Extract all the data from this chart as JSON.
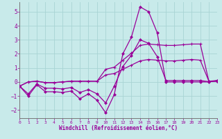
{
  "xlabel": "Windchill (Refroidissement éolien,°C)",
  "bg_color": "#c8eaea",
  "grid_color": "#a8d4d4",
  "line_color": "#990099",
  "xlim": [
    0,
    23
  ],
  "ylim": [
    -2.6,
    5.7
  ],
  "xticks": [
    0,
    1,
    2,
    3,
    4,
    5,
    6,
    7,
    8,
    9,
    10,
    11,
    12,
    13,
    14,
    15,
    16,
    17,
    18,
    19,
    20,
    21,
    22,
    23
  ],
  "yticks": [
    -2,
    -1,
    0,
    1,
    2,
    3,
    4,
    5
  ],
  "x": [
    0,
    1,
    2,
    3,
    4,
    5,
    6,
    7,
    8,
    9,
    10,
    11,
    12,
    13,
    14,
    15,
    16,
    17,
    18,
    19,
    20,
    21,
    22,
    23
  ],
  "line_diamond1": [
    -0.3,
    -1.0,
    -0.2,
    -0.7,
    -0.7,
    -0.75,
    -0.65,
    -1.2,
    -0.85,
    -1.3,
    -2.2,
    -0.9,
    2.0,
    3.2,
    5.35,
    5.0,
    3.5,
    0.0,
    0.0,
    0.0,
    0.0,
    0.0,
    0.0,
    0.1
  ],
  "line_diamond2": [
    -0.3,
    -0.85,
    -0.15,
    -0.45,
    -0.45,
    -0.5,
    -0.4,
    -0.75,
    -0.55,
    -0.85,
    -1.5,
    -0.3,
    1.1,
    1.9,
    3.0,
    2.75,
    1.8,
    0.1,
    0.1,
    0.1,
    0.1,
    0.1,
    0.02,
    0.05
  ],
  "line_plus1": [
    -0.3,
    0.0,
    0.05,
    -0.05,
    -0.05,
    0.0,
    0.05,
    0.05,
    0.05,
    0.05,
    0.9,
    1.05,
    1.55,
    2.05,
    2.6,
    2.7,
    2.65,
    2.6,
    2.6,
    2.65,
    2.7,
    2.7,
    0.05,
    0.1
  ],
  "line_plus2": [
    -0.3,
    0.0,
    0.05,
    -0.05,
    -0.05,
    0.0,
    0.05,
    0.05,
    0.05,
    0.05,
    0.5,
    0.6,
    0.9,
    1.2,
    1.5,
    1.6,
    1.55,
    1.5,
    1.5,
    1.55,
    1.6,
    1.55,
    0.05,
    0.05
  ]
}
